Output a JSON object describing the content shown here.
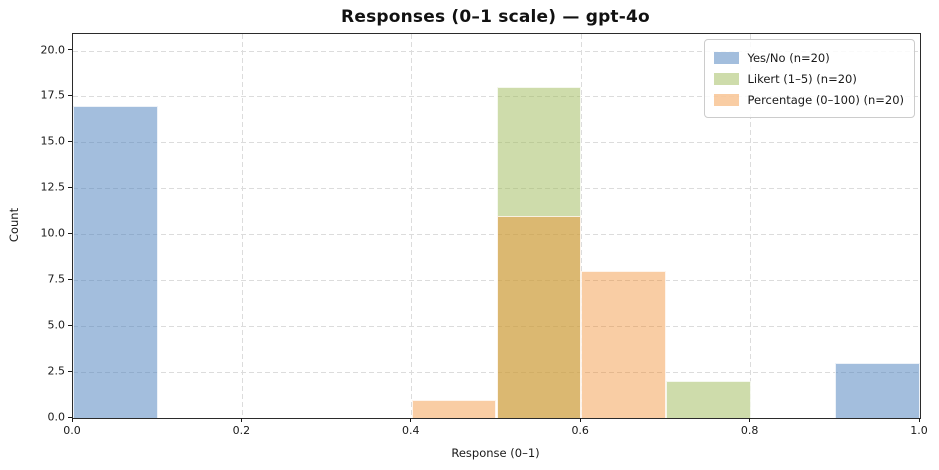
{
  "chart_data": {
    "type": "bar",
    "subtype": "overlapping-histogram",
    "title": "Responses (0–1 scale) — gpt-4o",
    "xlabel": "Response (0–1)",
    "ylabel": "Count",
    "xlim": [
      0,
      1
    ],
    "ylim": [
      0,
      20.9
    ],
    "xticks": [
      "0.0",
      "0.2",
      "0.4",
      "0.6",
      "0.8",
      "1.0"
    ],
    "yticks": [
      "0.0",
      "2.5",
      "5.0",
      "7.5",
      "10.0",
      "12.5",
      "15.0",
      "17.5",
      "20.0"
    ],
    "grid": "both, dashed",
    "grid_color": "#dcdcdc",
    "legend_position": "upper-right",
    "bin_width": 0.1,
    "series": [
      {
        "name": "Yes/No (n=20)",
        "color": "rgba(71,125,187,0.5)",
        "solid_color": "#a3bedd",
        "bars": [
          {
            "x0": 0.0,
            "x1": 0.1,
            "count": 17
          },
          {
            "x0": 0.9,
            "x1": 1.0,
            "count": 3
          }
        ]
      },
      {
        "name": "Likert (1–5) (n=20)",
        "color": "rgba(157,185,87,0.5)",
        "solid_color": "#cedcab",
        "bars": [
          {
            "x0": 0.5,
            "x1": 0.6,
            "count": 18
          },
          {
            "x0": 0.7,
            "x1": 0.8,
            "count": 2
          }
        ]
      },
      {
        "name": "Percentage (0–100) (n=20)",
        "color": "rgba(240,130,27,0.4)",
        "solid_color": "#f9cda4",
        "bars": [
          {
            "x0": 0.4,
            "x1": 0.5,
            "count": 1
          },
          {
            "x0": 0.5,
            "x1": 0.6,
            "count": 11
          },
          {
            "x0": 0.6,
            "x1": 0.7,
            "count": 8
          }
        ]
      }
    ],
    "overlap_note": "orange over green 0.5–0.6 renders as tan #dfb673"
  }
}
